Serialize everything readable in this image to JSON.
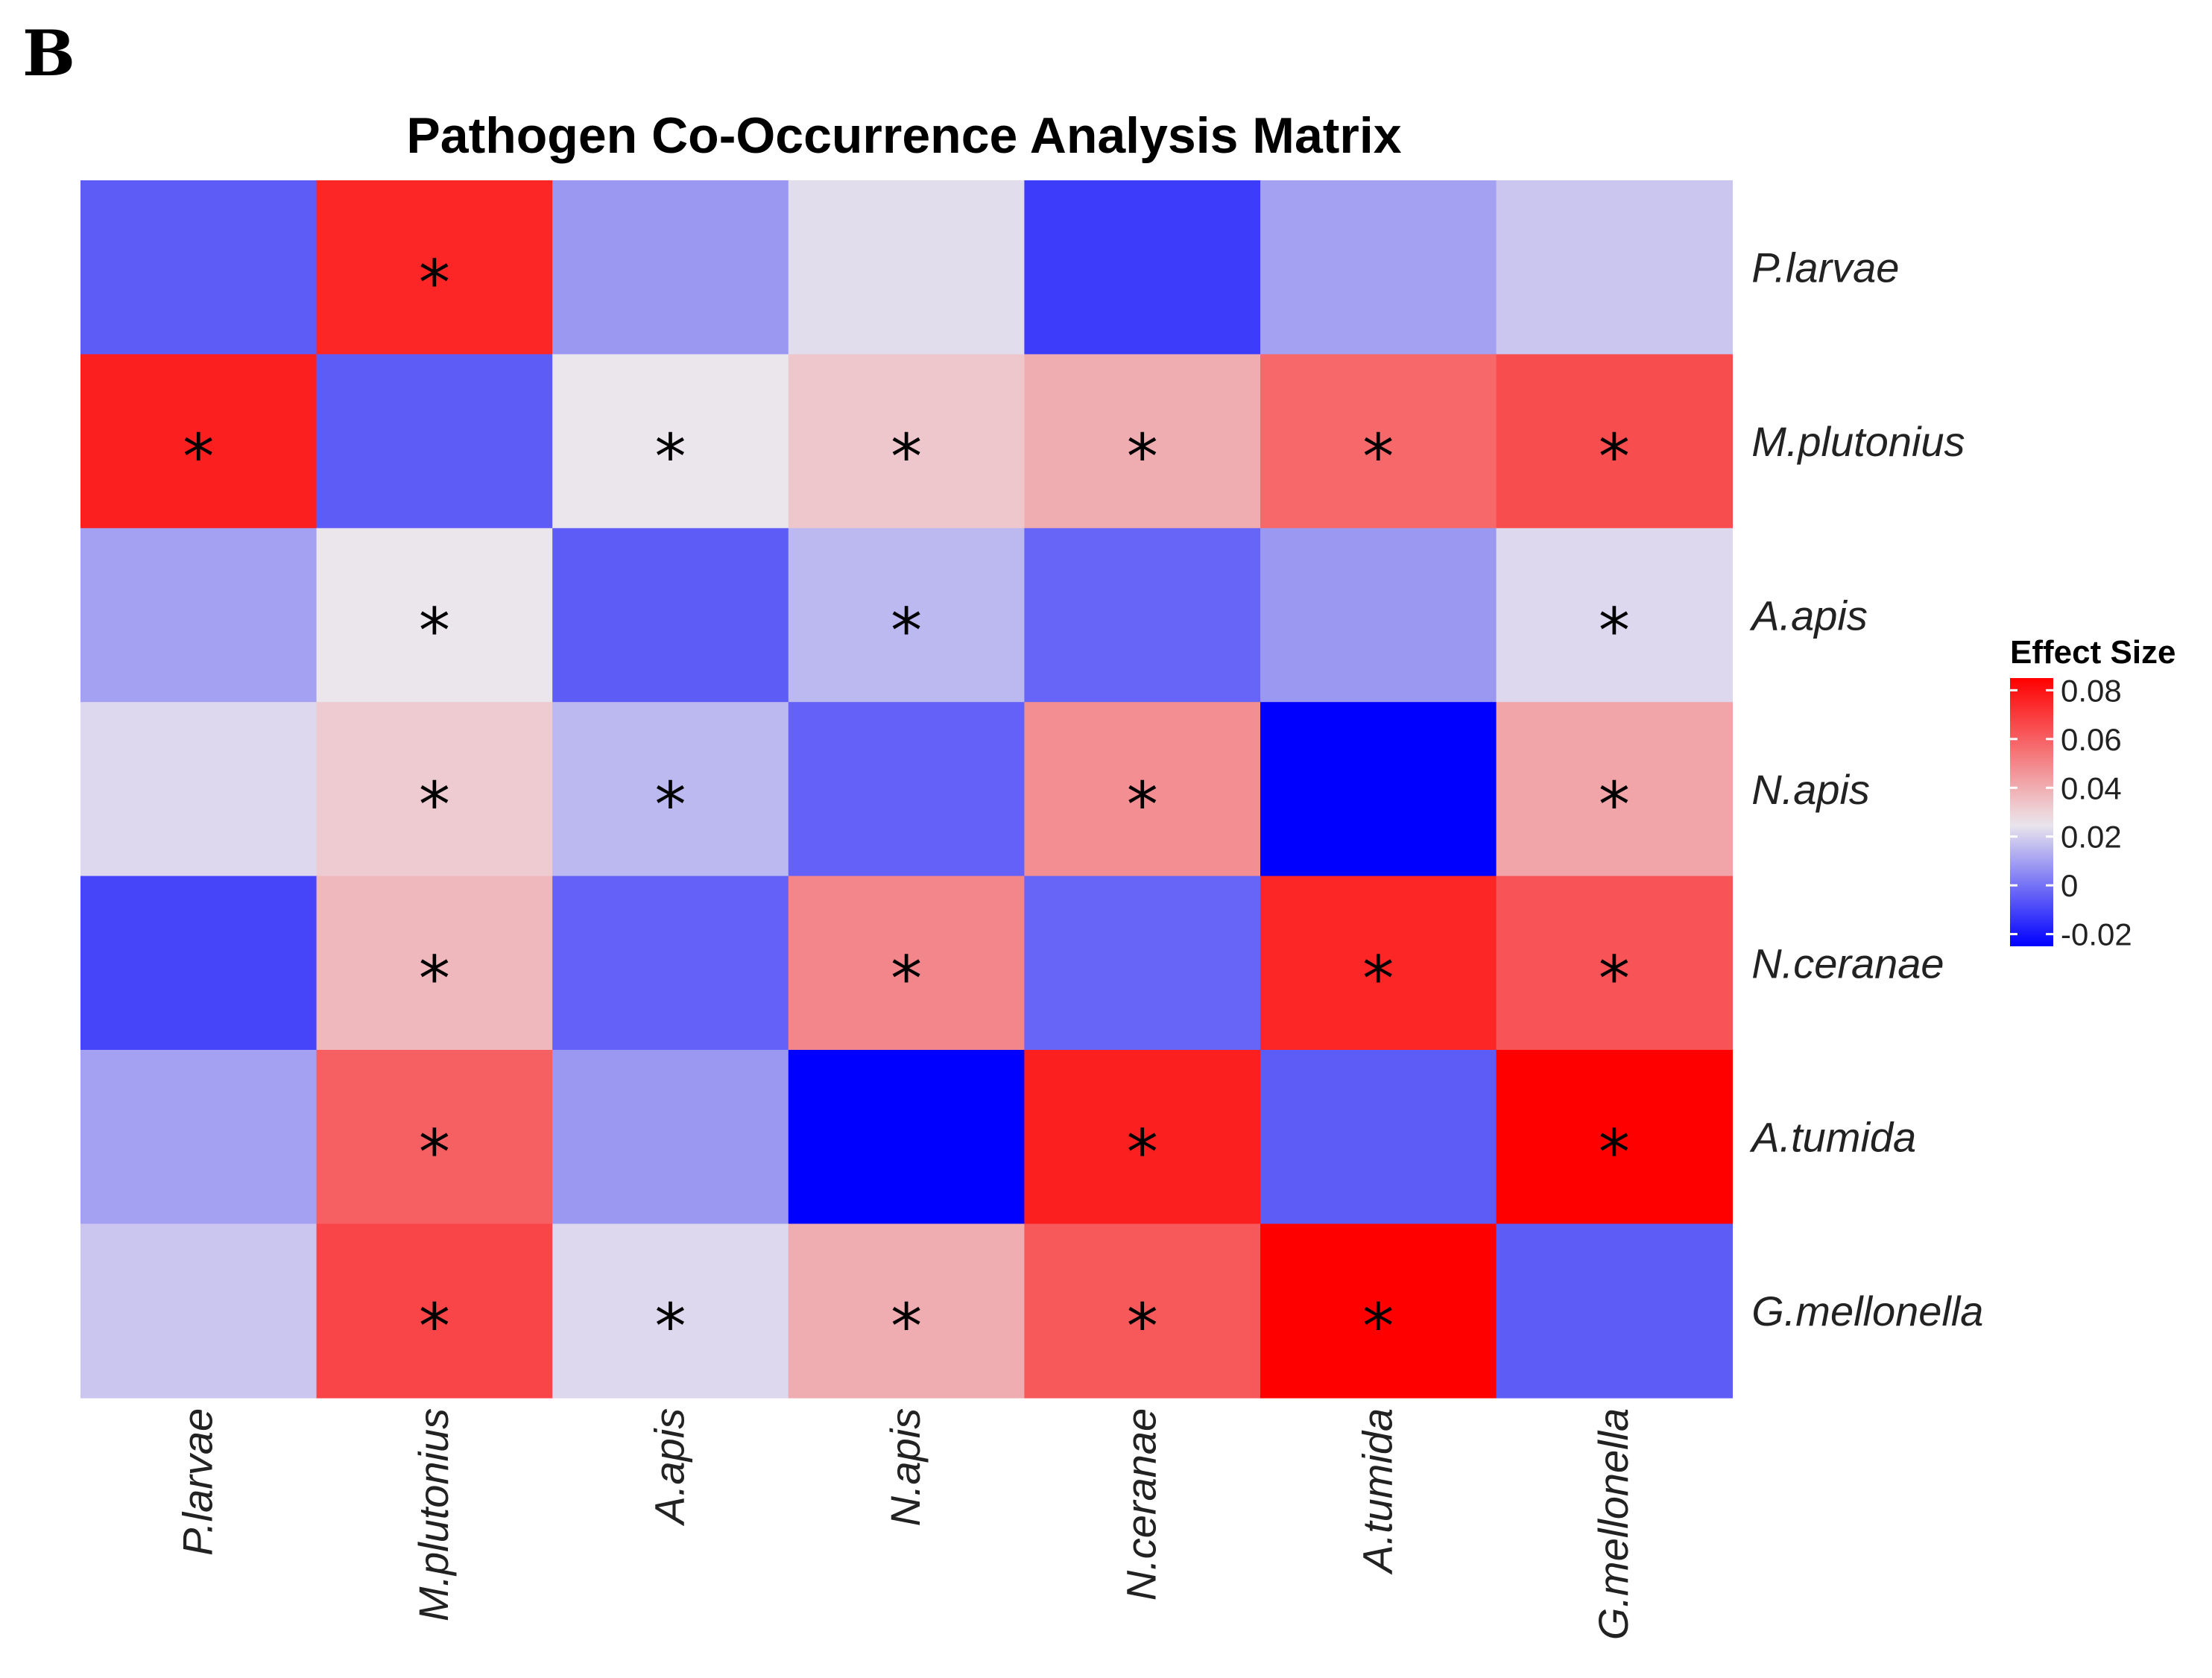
{
  "panel_label": "B",
  "chart_data": {
    "type": "heatmap",
    "title": "Pathogen Co-Occurrence Analysis Matrix",
    "rows": [
      "P.larvae",
      "M.plutonius",
      "A.apis",
      "N.apis",
      "N.ceranae",
      "A.tumida",
      "G.mellonella"
    ],
    "columns": [
      "P.larvae",
      "M.plutonius",
      "A.apis",
      "N.apis",
      "N.ceranae",
      "A.tumida",
      "G.mellonella"
    ],
    "values": [
      [
        -0.005,
        0.075,
        0.008,
        0.023,
        -0.012,
        0.01,
        0.018
      ],
      [
        0.077,
        -0.005,
        0.025,
        0.033,
        0.04,
        0.058,
        0.065
      ],
      [
        0.01,
        0.025,
        -0.005,
        0.015,
        -0.003,
        0.008,
        0.022
      ],
      [
        0.022,
        0.032,
        0.015,
        -0.004,
        0.048,
        -0.025,
        0.042
      ],
      [
        -0.01,
        0.037,
        -0.004,
        0.05,
        -0.003,
        0.075,
        0.063
      ],
      [
        0.01,
        0.06,
        0.008,
        -0.025,
        0.077,
        -0.005,
        0.085
      ],
      [
        0.018,
        0.067,
        0.022,
        0.04,
        0.062,
        0.085,
        -0.005
      ]
    ],
    "significant": [
      [
        false,
        true,
        false,
        false,
        false,
        false,
        false
      ],
      [
        true,
        false,
        true,
        true,
        true,
        true,
        true
      ],
      [
        false,
        true,
        false,
        true,
        false,
        false,
        true
      ],
      [
        false,
        true,
        true,
        false,
        true,
        false,
        true
      ],
      [
        false,
        true,
        false,
        true,
        false,
        true,
        true
      ],
      [
        false,
        true,
        false,
        false,
        true,
        false,
        true
      ],
      [
        false,
        true,
        true,
        true,
        true,
        true,
        false
      ]
    ],
    "significance_marker": "*",
    "legend": {
      "title": "Effect Size",
      "ticks": [
        "0.08",
        "0.06",
        "0.04",
        "0.02",
        "0",
        "-0.02"
      ],
      "tick_values": [
        0.08,
        0.06,
        0.04,
        0.02,
        0,
        -0.02
      ],
      "range": [
        -0.025,
        0.085
      ],
      "placement": "right"
    },
    "colors": {
      "low": "#0000ff",
      "mid": "#ebe6ec",
      "high": "#ff0000",
      "mid_value": 0.025
    }
  }
}
